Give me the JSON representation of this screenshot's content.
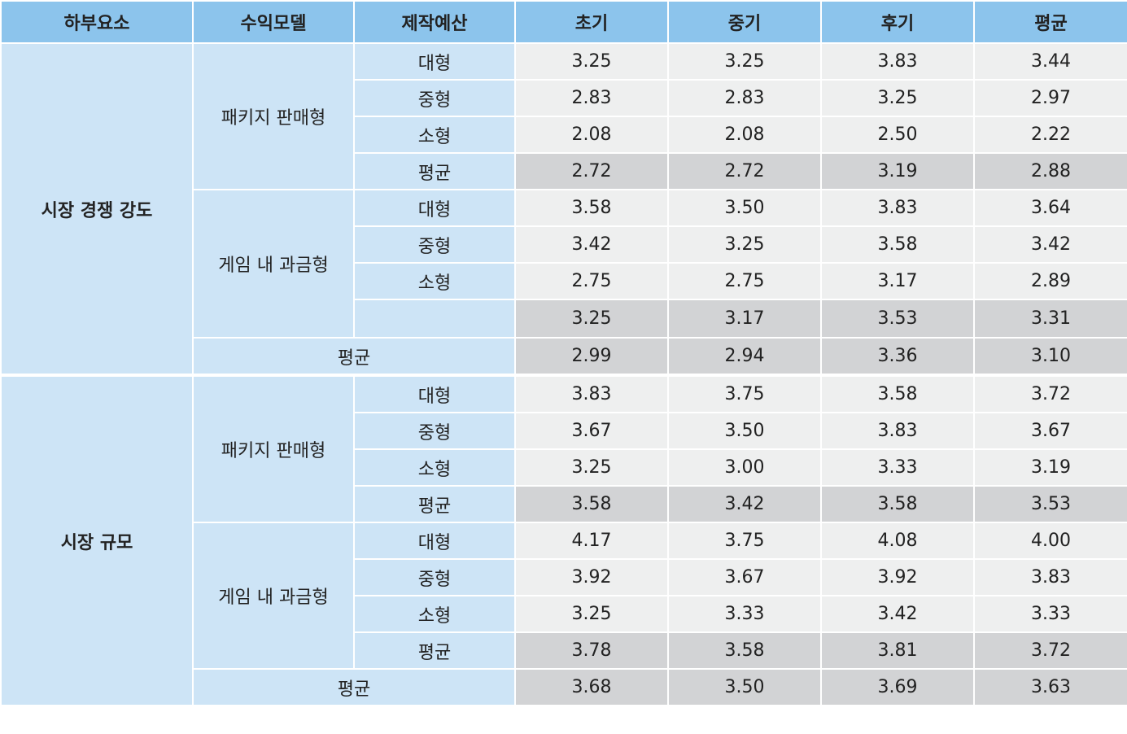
{
  "headers": [
    "하부요소",
    "수익모델",
    "제작예산",
    "초기",
    "중기",
    "후기",
    "평균"
  ],
  "groups": [
    {
      "label": "시장 경쟁 강도",
      "models": [
        {
          "label": "패키지 판매형",
          "rows": [
            {
              "budget": "대형",
              "values": [
                "3.25",
                "3.25",
                "3.83",
                "3.44"
              ]
            },
            {
              "budget": "중형",
              "values": [
                "2.83",
                "2.83",
                "3.25",
                "2.97"
              ]
            },
            {
              "budget": "소형",
              "values": [
                "2.08",
                "2.08",
                "2.50",
                "2.22"
              ]
            },
            {
              "budget": "평균",
              "values": [
                "2.72",
                "2.72",
                "3.19",
                "2.88"
              ]
            }
          ]
        },
        {
          "label": "게임 내 과금형",
          "rows": [
            {
              "budget": "대형",
              "values": [
                "3.58",
                "3.50",
                "3.83",
                "3.64"
              ]
            },
            {
              "budget": "중형",
              "values": [
                "3.42",
                "3.25",
                "3.58",
                "3.42"
              ]
            },
            {
              "budget": "소형",
              "values": [
                "2.75",
                "2.75",
                "3.17",
                "2.89"
              ]
            },
            {
              "budget": "",
              "values": [
                "3.25",
                "3.17",
                "3.53",
                "3.31"
              ]
            }
          ]
        }
      ],
      "average": {
        "label": "평균",
        "values": [
          "2.99",
          "2.94",
          "3.36",
          "3.10"
        ]
      }
    },
    {
      "label": "시장 규모",
      "models": [
        {
          "label": "패키지 판매형",
          "rows": [
            {
              "budget": "대형",
              "values": [
                "3.83",
                "3.75",
                "3.58",
                "3.72"
              ]
            },
            {
              "budget": "중형",
              "values": [
                "3.67",
                "3.50",
                "3.83",
                "3.67"
              ]
            },
            {
              "budget": "소형",
              "values": [
                "3.25",
                "3.00",
                "3.33",
                "3.19"
              ]
            },
            {
              "budget": "평균",
              "values": [
                "3.58",
                "3.42",
                "3.58",
                "3.53"
              ]
            }
          ]
        },
        {
          "label": "게임 내 과금형",
          "rows": [
            {
              "budget": "대형",
              "values": [
                "4.17",
                "3.75",
                "4.08",
                "4.00"
              ]
            },
            {
              "budget": "중형",
              "values": [
                "3.92",
                "3.67",
                "3.92",
                "3.83"
              ]
            },
            {
              "budget": "소형",
              "values": [
                "3.25",
                "3.33",
                "3.42",
                "3.33"
              ]
            },
            {
              "budget": "평균",
              "values": [
                "3.78",
                "3.58",
                "3.81",
                "3.72"
              ]
            }
          ]
        }
      ],
      "average": {
        "label": "평균",
        "values": [
          "3.68",
          "3.50",
          "3.69",
          "3.63"
        ]
      }
    }
  ]
}
